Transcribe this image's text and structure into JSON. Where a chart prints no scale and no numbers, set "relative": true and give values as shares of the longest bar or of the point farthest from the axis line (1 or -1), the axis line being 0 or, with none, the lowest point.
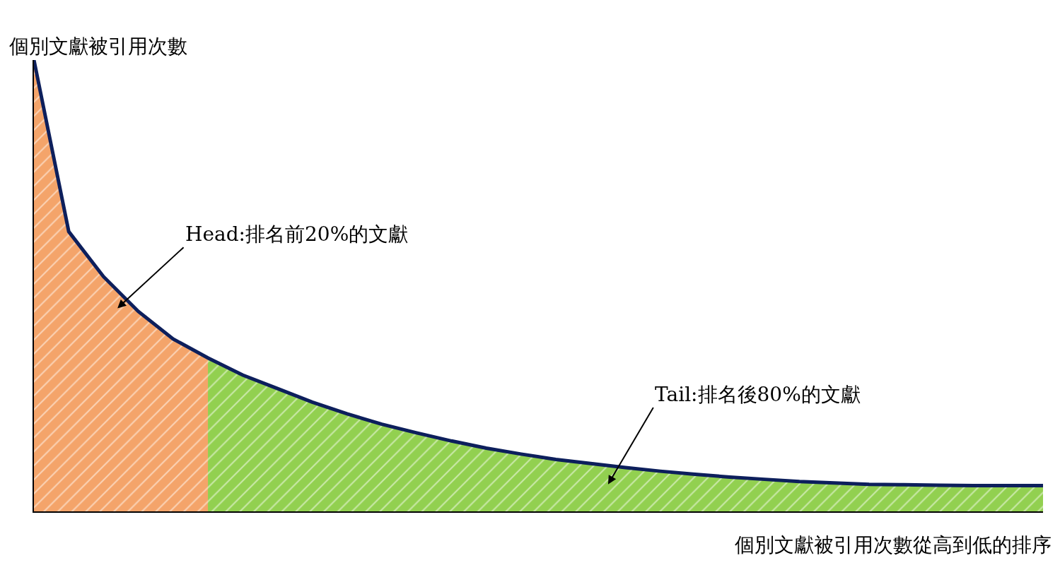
{
  "chart_data": {
    "type": "area",
    "relative": true,
    "ylabel": "個別文獻被引用次數",
    "xlabel": "個別文獻被引用次數從高到低的排序",
    "categories": [
      null,
      null,
      null,
      null,
      null,
      null,
      null,
      null,
      null,
      null,
      null,
      null,
      null,
      null,
      null,
      null,
      null,
      null,
      null,
      null,
      null,
      null,
      null,
      null,
      null,
      null,
      null,
      null,
      null,
      null
    ],
    "series": [
      {
        "color": "#f4a46a",
        "values": [
          1.0,
          0.62,
          0.52,
          0.443,
          0.382,
          0.34,
          null,
          null,
          null,
          null,
          null,
          null,
          null,
          null,
          null,
          null,
          null,
          null,
          null,
          null,
          null,
          null,
          null,
          null,
          null,
          null,
          null,
          null,
          null,
          null
        ]
      },
      {
        "color": "#92d050",
        "values": [
          null,
          null,
          null,
          null,
          null,
          0.34,
          0.302,
          0.272,
          0.242,
          0.216,
          0.193,
          0.174,
          0.156,
          0.14,
          0.127,
          0.115,
          0.106,
          0.097,
          0.089,
          0.082,
          0.076,
          0.071,
          0.066,
          0.063,
          0.06,
          0.059,
          0.058,
          0.057,
          0.057,
          0.057
        ]
      },
      {
        "type": "line",
        "color": "#0d1f5c",
        "values": [
          1.0,
          0.62,
          0.52,
          0.443,
          0.382,
          0.34,
          0.302,
          0.272,
          0.242,
          0.216,
          0.193,
          0.174,
          0.156,
          0.14,
          0.127,
          0.115,
          0.106,
          0.097,
          0.089,
          0.082,
          0.076,
          0.071,
          0.066,
          0.063,
          0.06,
          0.059,
          0.058,
          0.057,
          0.057,
          0.057
        ]
      }
    ],
    "annotations": [
      "Head:排名前20%的文獻",
      "Tail:排名後80%的文獻"
    ]
  }
}
